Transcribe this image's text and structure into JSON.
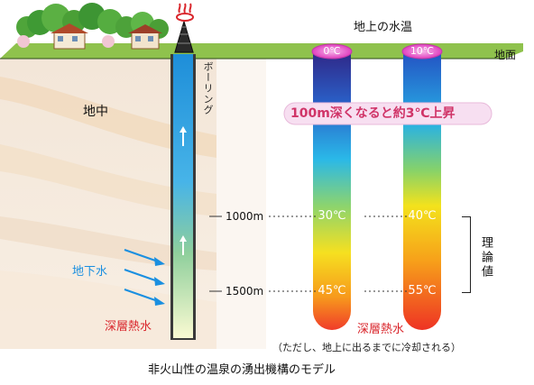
{
  "labels": {
    "surface_temp_title": "地上の水温",
    "ground_surface": "地面",
    "underground": "地中",
    "boring": "ボーリング",
    "rate_note": "100m深くなると約3℃上昇",
    "depth_1000": "1000m",
    "depth_1500": "1500m",
    "theoretical": "理論値",
    "groundwater": "地下水",
    "deep_hot_water_left": "深層熱水",
    "deep_hot_water_right": "深層熱水",
    "cooling_note": "（ただし、地上に出るまでに冷却される）",
    "caption": "非火山性の温泉の湧出機構のモデル"
  },
  "columns": [
    {
      "surface": "0℃",
      "at_1000m": "30℃",
      "at_1500m": "45℃"
    },
    {
      "surface": "10℃",
      "at_1000m": "40℃",
      "at_1500m": "55℃"
    }
  ],
  "colors": {
    "ground_green": "#8fc24d",
    "boring_top": "#1e90d8",
    "boring_bottom": "#f4f5c8",
    "accent_red": "#d9262c",
    "groundwater_blue": "#1a8fe0",
    "rate_box_text": "#d03468",
    "rate_box_fill": "#f7dff1",
    "oval_pink": "#e646c4"
  }
}
